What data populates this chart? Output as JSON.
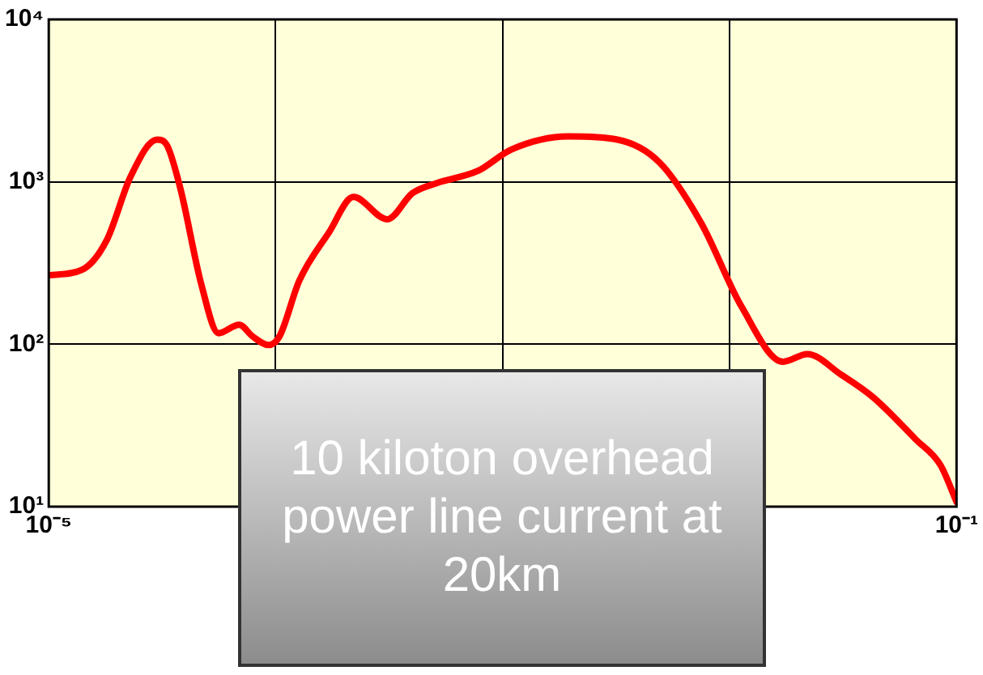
{
  "chart_data": {
    "type": "line",
    "log": "xy",
    "x": [
      1e-05,
      1.4e-05,
      1.8e-05,
      2.3e-05,
      3e-05,
      3.3e-05,
      3.8e-05,
      4.7e-05,
      5.6e-05,
      6.9e-05,
      7.9e-05,
      9.3e-05,
      0.000104,
      0.000127,
      0.000172,
      0.00022,
      0.00031,
      0.0004,
      0.00051,
      0.00078,
      0.00109,
      0.00195,
      0.0032,
      0.0049,
      0.0075,
      0.0113,
      0.0172,
      0.022,
      0.031,
      0.043,
      0.066,
      0.085,
      0.1
    ],
    "series": [
      {
        "color": "#ff0000",
        "values": [
          266,
          287,
          437,
          1085,
          1820,
          1700,
          912,
          234,
          117,
          132,
          112,
          99,
          112,
          246,
          490,
          807,
          588,
          850,
          980,
          1170,
          1580,
          1905,
          1820,
          1320,
          557,
          170,
          78,
          87,
          65,
          47,
          26,
          18,
          10.7
        ]
      }
    ],
    "xlim": [
      1e-05,
      0.1
    ],
    "xticks": [
      {
        "value": 1e-05,
        "label": "10⁻⁵"
      },
      {
        "value": 0.0001,
        "label": null
      },
      {
        "value": 0.001,
        "label": null
      },
      {
        "value": 0.01,
        "label": null
      },
      {
        "value": 0.1,
        "label": "10⁻¹"
      }
    ],
    "ylim": [
      10,
      10000
    ],
    "yticks": [
      {
        "value": 10,
        "label": "10¹"
      },
      {
        "value": 100,
        "label": "10²"
      },
      {
        "value": 1000,
        "label": "10³"
      },
      {
        "value": 10000,
        "label": "10⁴"
      }
    ],
    "grid": true,
    "legend": false,
    "marker": "none",
    "line_style": "solid",
    "annotations": [
      "10 kiloton overhead power line current at 20km"
    ]
  }
}
